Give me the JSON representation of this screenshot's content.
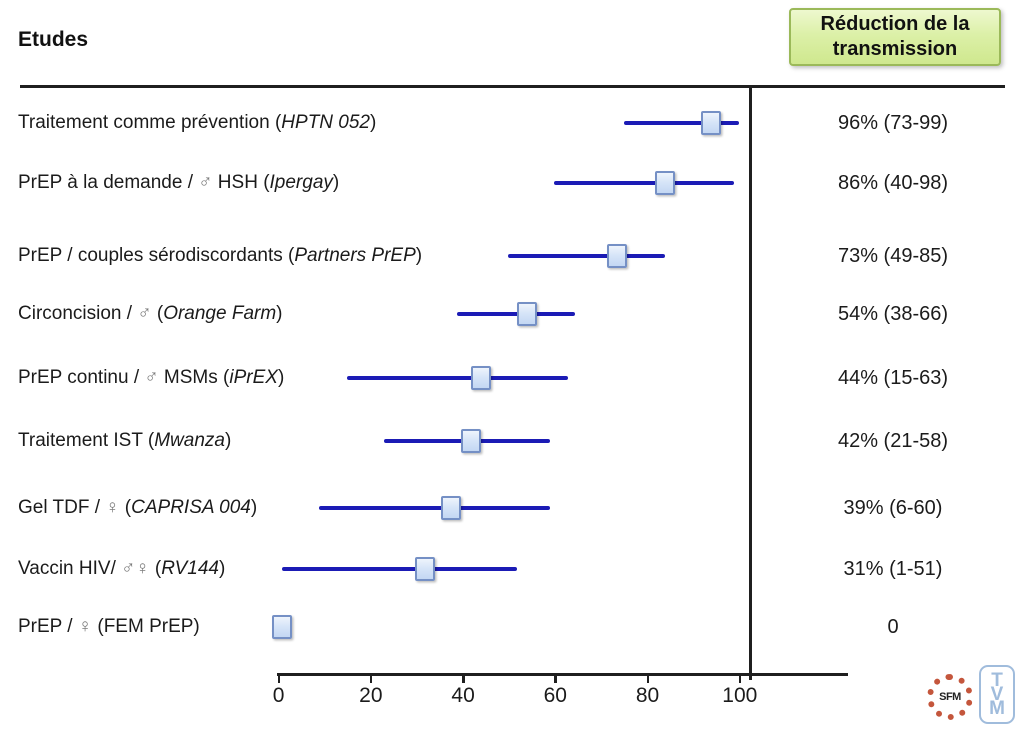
{
  "header": {
    "title": "Etudes",
    "value_header": "Réduction de la transmission"
  },
  "colors": {
    "ci_line": "#1b1bb5",
    "marker_fill": "#c3d7f3",
    "marker_border": "#7590c5",
    "header_box_fill": "#cfe88e",
    "header_box_border": "#9bb959",
    "rule": "#1f1f1f"
  },
  "logos": {
    "sfm": "SFM",
    "tvm": [
      "T",
      "V",
      "M"
    ]
  },
  "chart_data": {
    "type": "scatter",
    "subtype": "forest-plot",
    "title": "",
    "xlabel": "",
    "ylabel": "",
    "legend": null,
    "grid": false,
    "x_axis": {
      "ticks": [
        0,
        20,
        40,
        60,
        80,
        100
      ],
      "range_drawn": [
        0,
        124
      ]
    },
    "rows": [
      {
        "pre": "Traitement comme prévention (",
        "sym": "",
        "mid": "",
        "study": "HPTN 052",
        "post": ")",
        "value_label": "96% (73-99)",
        "estimate": 96,
        "ci": [
          73,
          99
        ],
        "drawn": {
          "lo": 75,
          "mid": 94,
          "hi": 100
        }
      },
      {
        "pre": "PrEP à la demande / ",
        "sym": "♂",
        "mid": " HSH (",
        "study": "Ipergay",
        "post": ")",
        "value_label": "86% (40-98)",
        "estimate": 86,
        "ci": [
          40,
          98
        ],
        "drawn": {
          "lo": 60,
          "mid": 84,
          "hi": 99
        }
      },
      {
        "pre": "PrEP / couples sérodiscordants (",
        "sym": "",
        "mid": "",
        "study": "Partners PrEP",
        "post": ")",
        "value_label": "73% (49-85)",
        "estimate": 73,
        "ci": [
          49,
          85
        ],
        "drawn": {
          "lo": 50,
          "mid": 73.5,
          "hi": 84
        }
      },
      {
        "pre": "Circoncision / ",
        "sym": "♂",
        "mid": " (",
        "study": "Orange Farm",
        "post": ")",
        "value_label": "54% (38-66)",
        "estimate": 54,
        "ci": [
          38,
          66
        ],
        "drawn": {
          "lo": 39,
          "mid": 54,
          "hi": 64.5
        }
      },
      {
        "pre": "PrEP continu / ",
        "sym": "♂",
        "mid": " MSMs (",
        "study": "iPrEX",
        "post": ")",
        "value_label": "44% (15-63)",
        "estimate": 44,
        "ci": [
          15,
          63
        ],
        "drawn": {
          "lo": 15,
          "mid": 44,
          "hi": 63
        }
      },
      {
        "pre": "Traitement IST (",
        "sym": "",
        "mid": "",
        "study": "Mwanza",
        "post": ")",
        "value_label": "42% (21-58)",
        "estimate": 42,
        "ci": [
          21,
          58
        ],
        "drawn": {
          "lo": 23,
          "mid": 42,
          "hi": 59
        }
      },
      {
        "pre": "Gel TDF / ",
        "sym": "♀",
        "mid": " (",
        "study": "CAPRISA 004",
        "post": ")",
        "value_label": "39% (6-60)",
        "estimate": 39,
        "ci": [
          6,
          60
        ],
        "drawn": {
          "lo": 9,
          "mid": 37.5,
          "hi": 59
        }
      },
      {
        "pre": "Vaccin HIV/ ",
        "sym": "♂♀",
        "mid": " (",
        "study": "RV144",
        "post": ")",
        "value_label": "31% (1-51)",
        "estimate": 31,
        "ci": [
          1,
          51
        ],
        "drawn": {
          "lo": 1,
          "mid": 32,
          "hi": 52
        }
      },
      {
        "pre": "PrEP / ",
        "sym": "♀",
        "mid": " (FEM PrEP)",
        "study": "",
        "post": "",
        "value_label": "0",
        "estimate": 0,
        "ci": null,
        "drawn": {
          "lo": null,
          "mid": 1,
          "hi": null
        }
      }
    ]
  }
}
